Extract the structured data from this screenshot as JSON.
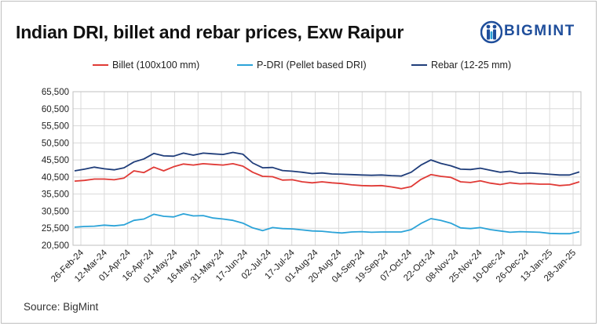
{
  "title": "Indian DRI, billet and rebar prices, Exw Raipur",
  "logo_text": "BIGMINT",
  "source": "Source: BigMint",
  "legend": [
    {
      "label": "Billet (100x100 mm)",
      "color": "#e03a36"
    },
    {
      "label": "P-DRI (Pellet based DRI)",
      "color": "#2ba3d8"
    },
    {
      "label": "Rebar (12-25 mm)",
      "color": "#1f3d7a"
    }
  ],
  "chart_data": {
    "type": "line",
    "title": "Indian DRI, billet and rebar prices, Exw Raipur",
    "xlabel": "",
    "ylabel": "",
    "ylim": [
      20500,
      65500
    ],
    "y_ticks": [
      20500,
      25500,
      30500,
      35500,
      40500,
      45500,
      50500,
      55500,
      60500,
      65500
    ],
    "y_tick_labels": [
      "20,500",
      "25,500",
      "30,500",
      "35,500",
      "40,500",
      "45,500",
      "50,500",
      "55,500",
      "60,500",
      "65,500"
    ],
    "x_tick_labels": [
      "26-Feb-24",
      "12-Mar-24",
      "01-Apr-24",
      "16-Apr-24",
      "01-May-24",
      "16-May-24",
      "31-May-24",
      "17-Jun-24",
      "02-Jul-24",
      "17-Jul-24",
      "01-Aug-24",
      "20-Aug-24",
      "04-Sep-24",
      "19-Sep-24",
      "07-Oct-24",
      "22-Oct-24",
      "08-Nov-24",
      "25-Nov-24",
      "10-Dec-24",
      "26-Dec-24",
      "13-Jan-25",
      "28-Jan-25"
    ],
    "grid": true,
    "legend_position": "top",
    "series": [
      {
        "name": "Billet (100x100 mm)",
        "color": "#e03a36",
        "values": [
          39300,
          39500,
          39900,
          39900,
          39700,
          40200,
          42300,
          41800,
          43400,
          42300,
          43500,
          44300,
          44000,
          44400,
          44200,
          44000,
          44400,
          43700,
          41900,
          40700,
          40600,
          39600,
          39700,
          39100,
          38800,
          39100,
          38800,
          38600,
          38200,
          38000,
          37900,
          38000,
          37600,
          37100,
          37700,
          39800,
          41200,
          40700,
          40400,
          39100,
          38900,
          39400,
          38700,
          38300,
          38800,
          38500,
          38600,
          38400,
          38400,
          38000,
          38200,
          39100
        ]
      },
      {
        "name": "P-DRI (Pellet based DRI)",
        "color": "#2ba3d8",
        "values": [
          25800,
          26000,
          26100,
          26400,
          26200,
          26500,
          27800,
          28200,
          29600,
          29000,
          28800,
          29700,
          29100,
          29200,
          28500,
          28200,
          27800,
          27000,
          25600,
          24800,
          25700,
          25400,
          25300,
          25000,
          24700,
          24600,
          24300,
          24100,
          24400,
          24500,
          24300,
          24400,
          24400,
          24400,
          25100,
          26900,
          28300,
          27800,
          27000,
          25600,
          25400,
          25700,
          25100,
          24700,
          24300,
          24500,
          24400,
          24300,
          24000,
          23900,
          23900,
          24500
        ]
      },
      {
        "name": "Rebar (12-25 mm)",
        "color": "#1f3d7a",
        "values": [
          42300,
          42800,
          43400,
          42900,
          42600,
          43200,
          44900,
          45800,
          47400,
          46700,
          46600,
          47500,
          46900,
          47500,
          47300,
          47100,
          47700,
          47200,
          44600,
          43200,
          43300,
          42400,
          42200,
          41900,
          41500,
          41700,
          41400,
          41300,
          41200,
          41100,
          41000,
          41100,
          40900,
          40800,
          41900,
          44000,
          45500,
          44500,
          43800,
          42800,
          42700,
          43100,
          42500,
          41900,
          42200,
          41600,
          41700,
          41500,
          41300,
          41100,
          41100,
          42000
        ]
      }
    ]
  }
}
